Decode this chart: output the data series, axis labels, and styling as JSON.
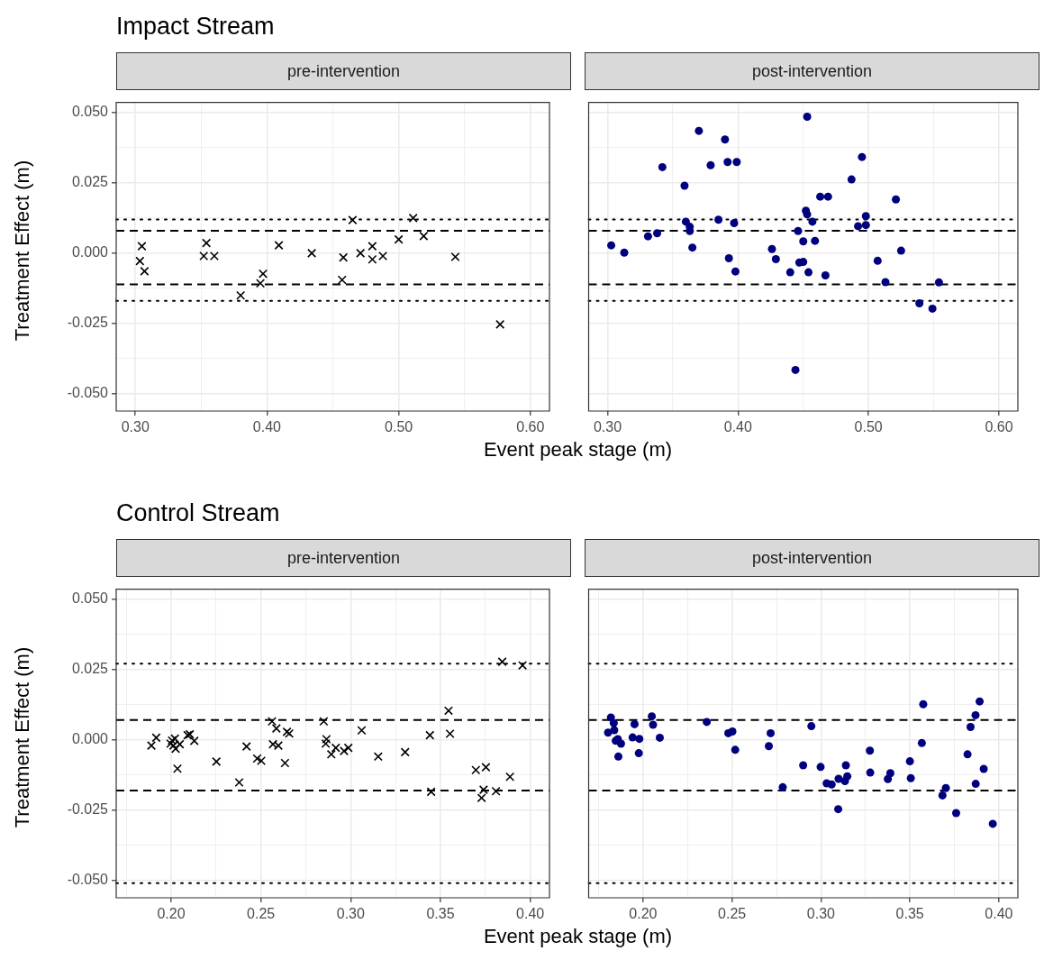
{
  "chart_data": [
    {
      "type": "scatter",
      "title": "Impact Stream",
      "subtitle": "pre-intervention",
      "xlabel": "Event peak stage (m)",
      "ylabel": "Treatment Effect (m)",
      "color": "#000000",
      "marker": "cross",
      "grid": true,
      "x": [
        0.305,
        0.3035,
        0.307,
        0.354,
        0.352,
        0.36,
        0.38,
        0.395,
        0.397,
        0.409,
        0.434,
        0.458,
        0.457,
        0.465,
        0.471,
        0.48,
        0.48,
        0.488,
        0.5,
        0.511,
        0.519,
        0.543,
        0.577
      ],
      "values": [
        0.0025,
        -0.0028,
        -0.0064,
        0.0036,
        -0.001,
        -0.001,
        -0.015,
        -0.0107,
        -0.0073,
        0.0028,
        0.0,
        -0.0015,
        -0.0095,
        0.0118,
        0.0,
        0.0025,
        -0.0022,
        -0.001,
        0.0049,
        0.0125,
        0.0061,
        -0.0013,
        -0.0253
      ],
      "xlim": [
        0.2855,
        0.6145
      ],
      "ylim": [
        -0.0561,
        0.0536
      ],
      "xticks": [
        {
          "value": 0.3,
          "label": "0.30"
        },
        {
          "value": 0.35,
          "label": null
        },
        {
          "value": 0.4,
          "label": "0.40"
        },
        {
          "value": 0.45,
          "label": null
        },
        {
          "value": 0.5,
          "label": "0.50"
        },
        {
          "value": 0.55,
          "label": null
        },
        {
          "value": 0.6,
          "label": "0.60"
        }
      ],
      "yticks": [
        {
          "value": -0.05,
          "label": "-0.050"
        },
        {
          "value": -0.0375,
          "label": null
        },
        {
          "value": -0.025,
          "label": "-0.025"
        },
        {
          "value": -0.0125,
          "label": null
        },
        {
          "value": 0,
          "label": "0.000"
        },
        {
          "value": 0.0125,
          "label": null
        },
        {
          "value": 0.025,
          "label": "0.025"
        },
        {
          "value": 0.0375,
          "label": null
        },
        {
          "value": 0.05,
          "label": "0.050"
        }
      ],
      "ref_lines": [
        {
          "axis": "y",
          "value": 0.012,
          "line_style": "dotted",
          "color": "#000000"
        },
        {
          "axis": "y",
          "value": 0.008,
          "line_style": "dashed",
          "color": "#000000"
        },
        {
          "axis": "y",
          "value": -0.0111,
          "line_style": "dashed",
          "color": "#000000"
        },
        {
          "axis": "y",
          "value": -0.0169,
          "line_style": "dotted",
          "color": "#000000"
        }
      ]
    },
    {
      "type": "scatter",
      "subtitle": "post-intervention",
      "color": "#00007f",
      "marker": "circle",
      "grid": true,
      "tick_labels": "x",
      "x": [
        0.3028,
        0.3128,
        0.331,
        0.338,
        0.342,
        0.359,
        0.36,
        0.363,
        0.363,
        0.365,
        0.37,
        0.379,
        0.385,
        0.39,
        0.392,
        0.393,
        0.397,
        0.398,
        0.399,
        0.426,
        0.429,
        0.44,
        0.444,
        0.446,
        0.447,
        0.45,
        0.45,
        0.452,
        0.453,
        0.453,
        0.454,
        0.457,
        0.459,
        0.463,
        0.467,
        0.469,
        0.487,
        0.492,
        0.495,
        0.498,
        0.498,
        0.507,
        0.513,
        0.521,
        0.525,
        0.539,
        0.549,
        0.554
      ],
      "values": [
        0.0028,
        0.0002,
        0.006,
        0.0071,
        0.0306,
        0.024,
        0.0112,
        0.0094,
        0.0079,
        0.002,
        0.0435,
        0.0313,
        0.0119,
        0.0404,
        0.0324,
        -0.0018,
        0.0107,
        -0.0065,
        0.0324,
        0.0015,
        -0.0021,
        -0.0068,
        -0.0415,
        0.0079,
        -0.0033,
        0.0042,
        -0.0031,
        0.0151,
        0.0138,
        0.0485,
        -0.0068,
        0.0112,
        0.0044,
        0.0201,
        -0.0079,
        0.0201,
        0.0262,
        0.0096,
        0.0342,
        0.0132,
        0.01,
        -0.0027,
        -0.0103,
        0.0191,
        0.0009,
        -0.0178,
        -0.0197,
        -0.0104
      ],
      "xlim": [
        0.2855,
        0.6145
      ],
      "ylim": [
        -0.0561,
        0.0536
      ],
      "xticks": [
        {
          "value": 0.3,
          "label": "0.30"
        },
        {
          "value": 0.35,
          "label": null
        },
        {
          "value": 0.4,
          "label": "0.40"
        },
        {
          "value": 0.45,
          "label": null
        },
        {
          "value": 0.5,
          "label": "0.50"
        },
        {
          "value": 0.55,
          "label": null
        },
        {
          "value": 0.6,
          "label": "0.60"
        }
      ],
      "yticks": [
        -0.05,
        {
          "value": -0.0375,
          "label": null
        },
        -0.025,
        {
          "value": -0.0125,
          "label": null
        },
        0,
        {
          "value": 0.0125,
          "label": null
        },
        0.025,
        {
          "value": 0.0375,
          "label": null
        },
        0.05
      ],
      "ref_lines": [
        {
          "axis": "y",
          "value": 0.012,
          "line_style": "dotted",
          "color": "#000000"
        },
        {
          "axis": "y",
          "value": 0.008,
          "line_style": "dashed",
          "color": "#000000"
        },
        {
          "axis": "y",
          "value": -0.0111,
          "line_style": "dashed",
          "color": "#000000"
        },
        {
          "axis": "y",
          "value": -0.0169,
          "line_style": "dotted",
          "color": "#000000"
        }
      ]
    },
    {
      "type": "scatter",
      "title": "Control Stream",
      "subtitle": "pre-intervention",
      "xlabel": "Event peak stage (m)",
      "ylabel": "Treatment Effect (m)",
      "color": "#000000",
      "marker": "cross",
      "grid": true,
      "x": [
        0.189,
        0.1917,
        0.1997,
        0.2005,
        0.2013,
        0.2021,
        0.2025,
        0.2035,
        0.2048,
        0.2092,
        0.2104,
        0.2129,
        0.2252,
        0.2379,
        0.242,
        0.2479,
        0.2502,
        0.2562,
        0.2567,
        0.2586,
        0.2597,
        0.2634,
        0.2645,
        0.2658,
        0.285,
        0.2865,
        0.2861,
        0.2892,
        0.2917,
        0.2963,
        0.2987,
        0.3061,
        0.3153,
        0.3303,
        0.3441,
        0.3448,
        0.3545,
        0.3553,
        0.3697,
        0.3729,
        0.374,
        0.3753,
        0.3809,
        0.3844,
        0.3887,
        0.3957
      ],
      "values": [
        -0.002,
        0.0008,
        -0.0013,
        -0.0002,
        -0.002,
        0.0005,
        -0.0031,
        -0.0102,
        -0.0015,
        0.0017,
        0.002,
        -0.0003,
        -0.0077,
        -0.0151,
        -0.0023,
        -0.0066,
        -0.0074,
        0.0066,
        -0.0015,
        0.0041,
        -0.002,
        -0.0082,
        0.0029,
        0.0023,
        0.0066,
        0.0003,
        -0.0013,
        -0.0051,
        -0.0028,
        -0.0039,
        -0.0028,
        0.0034,
        -0.0059,
        -0.0043,
        0.0017,
        -0.0184,
        0.0104,
        0.0022,
        -0.0107,
        -0.0206,
        -0.0177,
        -0.0097,
        -0.0182,
        0.0278,
        -0.0131,
        0.0265
      ],
      "xlim": [
        0.1694,
        0.4107
      ],
      "ylim": [
        -0.0561,
        0.0536
      ],
      "xticks": [
        {
          "value": 0.175,
          "label": null
        },
        {
          "value": 0.2,
          "label": "0.20"
        },
        {
          "value": 0.225,
          "label": null
        },
        {
          "value": 0.25,
          "label": "0.25"
        },
        {
          "value": 0.275,
          "label": null
        },
        {
          "value": 0.3,
          "label": "0.30"
        },
        {
          "value": 0.325,
          "label": null
        },
        {
          "value": 0.35,
          "label": "0.35"
        },
        {
          "value": 0.375,
          "label": null
        },
        {
          "value": 0.4,
          "label": "0.40"
        }
      ],
      "yticks": [
        {
          "value": -0.05,
          "label": "-0.050"
        },
        {
          "value": -0.0375,
          "label": null
        },
        {
          "value": -0.025,
          "label": "-0.025"
        },
        {
          "value": -0.0125,
          "label": null
        },
        {
          "value": 0,
          "label": "0.000"
        },
        {
          "value": 0.0125,
          "label": null
        },
        {
          "value": 0.025,
          "label": "0.025"
        },
        {
          "value": 0.0375,
          "label": null
        },
        {
          "value": 0.05,
          "label": "0.050"
        }
      ],
      "ref_lines": [
        {
          "axis": "y",
          "value": 0.0271,
          "line_style": "dotted",
          "color": "#000000"
        },
        {
          "axis": "y",
          "value": 0.0071,
          "line_style": "dashed",
          "color": "#000000"
        },
        {
          "axis": "y",
          "value": -0.018,
          "line_style": "dashed",
          "color": "#000000"
        },
        {
          "axis": "y",
          "value": -0.0509,
          "line_style": "dotted",
          "color": "#000000"
        }
      ]
    },
    {
      "type": "scatter",
      "subtitle": "post-intervention",
      "color": "#00007f",
      "marker": "circle",
      "grid": true,
      "tick_labels": "x",
      "x": [
        0.1803,
        0.1819,
        0.1835,
        0.1838,
        0.1846,
        0.1858,
        0.1861,
        0.1876,
        0.1941,
        0.1952,
        0.1976,
        0.1979,
        0.2049,
        0.2056,
        0.2094,
        0.2358,
        0.2479,
        0.2502,
        0.2518,
        0.2707,
        0.2717,
        0.2785,
        0.29,
        0.2946,
        0.2998,
        0.3032,
        0.306,
        0.3097,
        0.3099,
        0.3135,
        0.314,
        0.3148,
        0.3275,
        0.3277,
        0.3376,
        0.339,
        0.35,
        0.3505,
        0.3567,
        0.3575,
        0.3683,
        0.3702,
        0.376,
        0.3824,
        0.3841,
        0.387,
        0.3869,
        0.3892,
        0.3915,
        0.3966
      ],
      "values": [
        0.0026,
        0.008,
        0.006,
        0.0035,
        -0.0003,
        0.0003,
        -0.0059,
        -0.0013,
        0.0009,
        0.0056,
        -0.0047,
        0.0004,
        0.0084,
        0.0054,
        0.0008,
        0.0064,
        0.0024,
        0.003,
        -0.0035,
        -0.0022,
        0.0024,
        -0.0168,
        -0.009,
        0.0049,
        -0.0096,
        -0.0154,
        -0.0158,
        -0.0246,
        -0.0138,
        -0.0146,
        -0.009,
        -0.0129,
        -0.0038,
        -0.0116,
        -0.0139,
        -0.0118,
        -0.0076,
        -0.0136,
        -0.0011,
        0.0127,
        -0.0197,
        -0.0171,
        -0.026,
        -0.0051,
        0.0046,
        -0.0156,
        0.0088,
        0.0137,
        -0.0103,
        -0.0298
      ],
      "xlim": [
        0.1694,
        0.4107
      ],
      "ylim": [
        -0.0561,
        0.0536
      ],
      "xticks": [
        {
          "value": 0.175,
          "label": null
        },
        {
          "value": 0.2,
          "label": "0.20"
        },
        {
          "value": 0.225,
          "label": null
        },
        {
          "value": 0.25,
          "label": "0.25"
        },
        {
          "value": 0.275,
          "label": null
        },
        {
          "value": 0.3,
          "label": "0.30"
        },
        {
          "value": 0.325,
          "label": null
        },
        {
          "value": 0.35,
          "label": "0.35"
        },
        {
          "value": 0.375,
          "label": null
        },
        {
          "value": 0.4,
          "label": "0.40"
        }
      ],
      "yticks": [
        -0.05,
        {
          "value": -0.0375,
          "label": null
        },
        -0.025,
        {
          "value": -0.0125,
          "label": null
        },
        0,
        {
          "value": 0.0125,
          "label": null
        },
        0.025,
        {
          "value": 0.0375,
          "label": null
        },
        0.05
      ],
      "ref_lines": [
        {
          "axis": "y",
          "value": 0.0271,
          "line_style": "dotted",
          "color": "#000000"
        },
        {
          "axis": "y",
          "value": 0.0071,
          "line_style": "dashed",
          "color": "#000000"
        },
        {
          "axis": "y",
          "value": -0.018,
          "line_style": "dashed",
          "color": "#000000"
        },
        {
          "axis": "y",
          "value": -0.0509,
          "line_style": "dotted",
          "color": "#000000"
        }
      ]
    }
  ]
}
